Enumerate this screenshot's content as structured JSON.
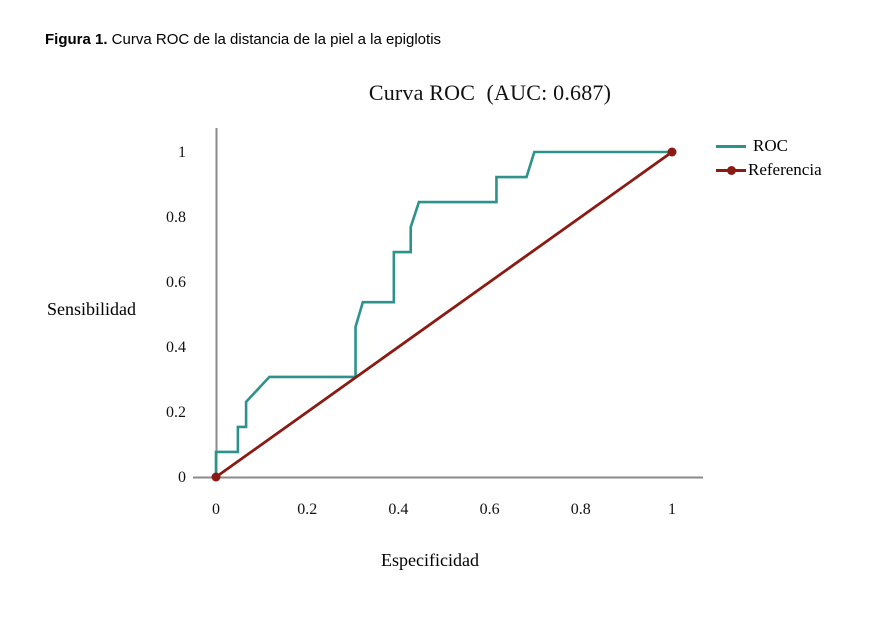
{
  "caption": {
    "figure_label": "Figura 1.",
    "text": " Curva ROC de la distancia de la piel a la epiglotis"
  },
  "chart": {
    "title": "Curva ROC  (AUC: 0.687)",
    "y_axis_label": "Sensibilidad",
    "x_axis_label": "Especificidad",
    "legend": [
      {
        "label": "ROC",
        "color": "#2E928C",
        "marker": false
      },
      {
        "label": "Referencia",
        "color": "#8B1A13",
        "marker": true
      }
    ]
  },
  "chart_data": {
    "type": "line",
    "title": "Curva ROC (AUC: 0.687)",
    "auc": 0.687,
    "xlabel": "Especificidad",
    "ylabel": "Sensibilidad",
    "xlim": [
      0,
      1
    ],
    "ylim": [
      0,
      1
    ],
    "x_ticks": [
      "0",
      "0.2",
      "0.4",
      "0.6",
      "0.8",
      "1"
    ],
    "y_ticks": [
      "0",
      "0.2",
      "0.4",
      "0.6",
      "0.8",
      "1"
    ],
    "grid": false,
    "legend_position": "top-right",
    "axis_color": "#8A8A8A",
    "series": [
      {
        "name": "ROC",
        "color": "#2E928C",
        "line_width": 2.6,
        "endpoint_markers": false,
        "points": [
          [
            0,
            0
          ],
          [
            0,
            0.077
          ],
          [
            0.048,
            0.077
          ],
          [
            0.048,
            0.154
          ],
          [
            0.066,
            0.154
          ],
          [
            0.066,
            0.231
          ],
          [
            0.117,
            0.308
          ],
          [
            0.306,
            0.308
          ],
          [
            0.306,
            0.462
          ],
          [
            0.322,
            0.538
          ],
          [
            0.39,
            0.538
          ],
          [
            0.39,
            0.692
          ],
          [
            0.427,
            0.692
          ],
          [
            0.427,
            0.769
          ],
          [
            0.445,
            0.846
          ],
          [
            0.615,
            0.846
          ],
          [
            0.615,
            0.923
          ],
          [
            0.681,
            0.923
          ],
          [
            0.698,
            1.0
          ],
          [
            1.0,
            1.0
          ]
        ]
      },
      {
        "name": "Referencia",
        "color": "#8B1A13",
        "line_width": 2.8,
        "endpoint_markers": true,
        "points": [
          [
            0,
            0
          ],
          [
            1,
            1
          ]
        ]
      }
    ]
  }
}
